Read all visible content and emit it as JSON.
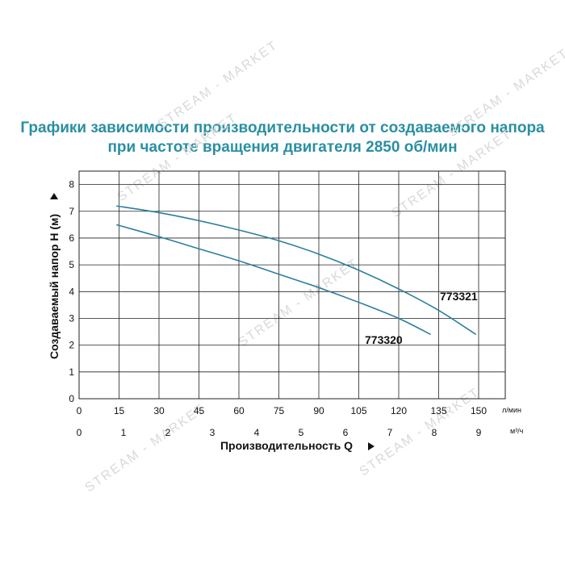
{
  "title": {
    "line1": "Графики зависимости производительности от создаваемого напора",
    "line2": "при частоте вращения двигателя 2850 об/мин"
  },
  "colors": {
    "title": "#2a8fa3",
    "series": "#2a7f9e",
    "grid": "#222222"
  },
  "watermark": "STREAM - MARKET",
  "chart_data": {
    "type": "line",
    "ylabel": "Создаваемый напор H (м)",
    "xlabel": "Производительность Q",
    "ylim": [
      0,
      8.5
    ],
    "yticks": [
      0,
      1,
      2,
      3,
      4,
      5,
      6,
      7,
      8
    ],
    "x_axis_lpm": {
      "unit": "л/мин",
      "ticks": [
        0,
        15,
        30,
        45,
        60,
        75,
        90,
        105,
        120,
        135,
        150
      ],
      "range": [
        0,
        160
      ]
    },
    "x_axis_m3h": {
      "unit": "м³/ч",
      "ticks": [
        0,
        1,
        2,
        3,
        4,
        5,
        6,
        7,
        8,
        9
      ]
    },
    "grid": true,
    "series": [
      {
        "name": "773321",
        "x": [
          14,
          30,
          45,
          60,
          75,
          90,
          105,
          120,
          135,
          149
        ],
        "y": [
          7.2,
          6.95,
          6.65,
          6.3,
          5.9,
          5.4,
          4.8,
          4.1,
          3.3,
          2.4
        ]
      },
      {
        "name": "773320",
        "x": [
          14,
          30,
          45,
          60,
          75,
          90,
          105,
          120,
          132
        ],
        "y": [
          6.5,
          6.05,
          5.6,
          5.15,
          4.65,
          4.15,
          3.6,
          3.0,
          2.4
        ]
      }
    ]
  }
}
